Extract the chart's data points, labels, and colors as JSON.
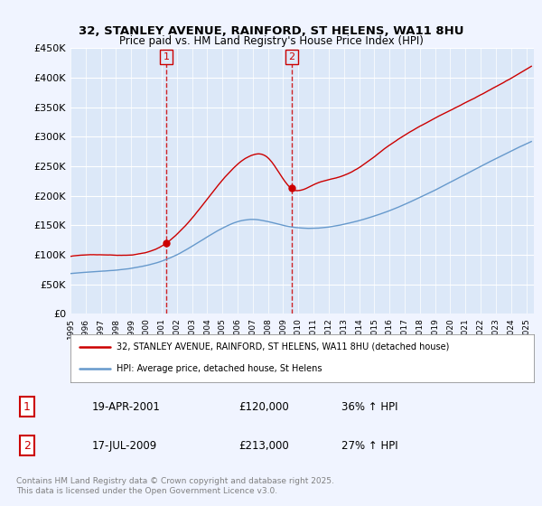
{
  "title_line1": "32, STANLEY AVENUE, RAINFORD, ST HELENS, WA11 8HU",
  "title_line2": "Price paid vs. HM Land Registry's House Price Index (HPI)",
  "background_color": "#f0f4ff",
  "plot_bg_color": "#dce8f8",
  "ylim": [
    0,
    450000
  ],
  "yticks": [
    0,
    50000,
    100000,
    150000,
    200000,
    250000,
    300000,
    350000,
    400000,
    450000
  ],
  "ytick_labels": [
    "£0",
    "£50K",
    "£100K",
    "£150K",
    "£200K",
    "£250K",
    "£300K",
    "£350K",
    "£400K",
    "£450K"
  ],
  "sale1_date": 2001.3,
  "sale1_price": 120000,
  "sale2_date": 2009.55,
  "sale2_price": 213000,
  "legend_line1": "32, STANLEY AVENUE, RAINFORD, ST HELENS, WA11 8HU (detached house)",
  "legend_line2": "HPI: Average price, detached house, St Helens",
  "table_row1": [
    "1",
    "19-APR-2001",
    "£120,000",
    "36% ↑ HPI"
  ],
  "table_row2": [
    "2",
    "17-JUL-2009",
    "£213,000",
    "27% ↑ HPI"
  ],
  "footer": "Contains HM Land Registry data © Crown copyright and database right 2025.\nThis data is licensed under the Open Government Licence v3.0.",
  "red_color": "#cc0000",
  "blue_color": "#6699cc",
  "xmin": 1995,
  "xmax": 2025.5,
  "hpi_years": [
    1995,
    1997,
    2000,
    2002,
    2004,
    2007,
    2009,
    2011,
    2013,
    2016,
    2019,
    2022,
    2026
  ],
  "hpi_vals_key": [
    68000,
    72000,
    82000,
    100000,
    130000,
    160000,
    150000,
    145000,
    152000,
    175000,
    210000,
    250000,
    300000
  ],
  "red_years": [
    1995,
    1997,
    2000,
    2001.3,
    2002,
    2004,
    2007,
    2008,
    2009.55,
    2011,
    2013,
    2016,
    2019,
    2022,
    2026
  ],
  "red_vals_key": [
    97000,
    100000,
    105000,
    120000,
    135000,
    195000,
    270000,
    265000,
    213000,
    220000,
    235000,
    285000,
    330000,
    370000,
    430000
  ]
}
